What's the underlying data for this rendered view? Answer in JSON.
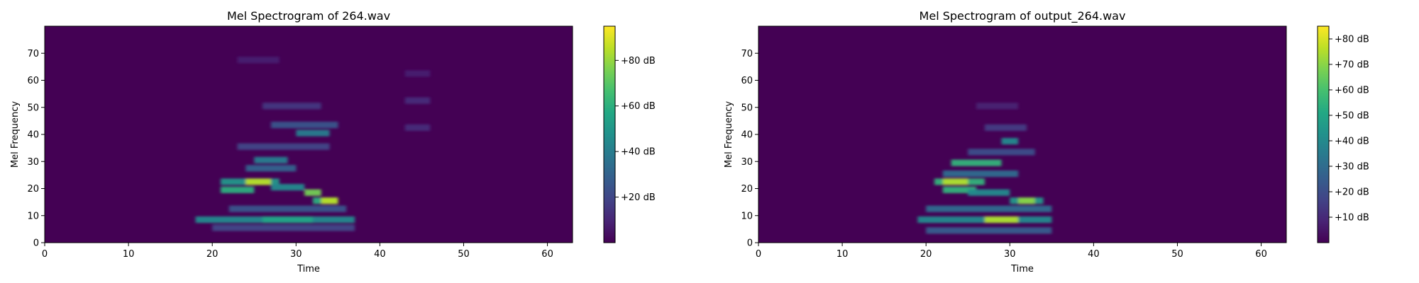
{
  "chart_data": [
    {
      "type": "heatmap",
      "title": "Mel Spectrogram of 264.wav",
      "xlabel": "Time",
      "ylabel": "Mel Frequency",
      "xlim": [
        0,
        63
      ],
      "ylim": [
        0,
        80
      ],
      "xticks": [
        0,
        10,
        20,
        30,
        40,
        50,
        60
      ],
      "yticks": [
        0,
        10,
        20,
        30,
        40,
        50,
        60,
        70
      ],
      "colormap": "viridis",
      "colorbar": {
        "min": 0,
        "max": 95,
        "ticks": [
          20,
          40,
          60,
          80
        ],
        "tick_labels": [
          "+20 dB",
          "+40 dB",
          "+60 dB",
          "+80 dB"
        ]
      },
      "bands": [
        {
          "t0": 18,
          "t1": 37,
          "mel": 8,
          "level": 45
        },
        {
          "t0": 26,
          "t1": 32,
          "mel": 8,
          "level": 55
        },
        {
          "t0": 21,
          "t1": 28,
          "mel": 22,
          "level": 50
        },
        {
          "t0": 24,
          "t1": 27,
          "mel": 22,
          "level": 85
        },
        {
          "t0": 21,
          "t1": 25,
          "mel": 19,
          "level": 60
        },
        {
          "t0": 31,
          "t1": 33,
          "mel": 18,
          "level": 75
        },
        {
          "t0": 32,
          "t1": 35,
          "mel": 15,
          "level": 60
        },
        {
          "t0": 33,
          "t1": 35,
          "mel": 15,
          "level": 85
        },
        {
          "t0": 27,
          "t1": 31,
          "mel": 20,
          "level": 45
        },
        {
          "t0": 30,
          "t1": 34,
          "mel": 40,
          "level": 40
        },
        {
          "t0": 25,
          "t1": 29,
          "mel": 30,
          "level": 40
        },
        {
          "t0": 24,
          "t1": 30,
          "mel": 27,
          "level": 30
        },
        {
          "t0": 22,
          "t1": 36,
          "mel": 12,
          "level": 25
        },
        {
          "t0": 20,
          "t1": 37,
          "mel": 5,
          "level": 20
        },
        {
          "t0": 27,
          "t1": 35,
          "mel": 43,
          "level": 25
        },
        {
          "t0": 23,
          "t1": 34,
          "mel": 35,
          "level": 20
        },
        {
          "t0": 26,
          "t1": 33,
          "mel": 50,
          "level": 15
        },
        {
          "t0": 43,
          "t1": 46,
          "mel": 52,
          "level": 12
        },
        {
          "t0": 43,
          "t1": 46,
          "mel": 42,
          "level": 12
        },
        {
          "t0": 43,
          "t1": 46,
          "mel": 62,
          "level": 8
        },
        {
          "t0": 23,
          "t1": 28,
          "mel": 67,
          "level": 8
        }
      ]
    },
    {
      "type": "heatmap",
      "title": "Mel Spectrogram of output_264.wav",
      "xlabel": "Time",
      "ylabel": "Mel Frequency",
      "xlim": [
        0,
        63
      ],
      "ylim": [
        0,
        80
      ],
      "xticks": [
        0,
        10,
        20,
        30,
        40,
        50,
        60
      ],
      "yticks": [
        0,
        10,
        20,
        30,
        40,
        50,
        60,
        70
      ],
      "colormap": "viridis",
      "colorbar": {
        "min": 0,
        "max": 85,
        "ticks": [
          10,
          20,
          30,
          40,
          50,
          60,
          70,
          80
        ],
        "tick_labels": [
          "+10 dB",
          "+20 dB",
          "+30 dB",
          "+40 dB",
          "+50 dB",
          "+60 dB",
          "+70 dB",
          "+80 dB"
        ]
      },
      "bands": [
        {
          "t0": 19,
          "t1": 35,
          "mel": 8,
          "level": 40
        },
        {
          "t0": 27,
          "t1": 31,
          "mel": 8,
          "level": 75
        },
        {
          "t0": 21,
          "t1": 27,
          "mel": 22,
          "level": 55
        },
        {
          "t0": 22,
          "t1": 25,
          "mel": 22,
          "level": 75
        },
        {
          "t0": 22,
          "t1": 26,
          "mel": 19,
          "level": 55
        },
        {
          "t0": 25,
          "t1": 30,
          "mel": 18,
          "level": 40
        },
        {
          "t0": 30,
          "t1": 34,
          "mel": 15,
          "level": 45
        },
        {
          "t0": 31,
          "t1": 33,
          "mel": 15,
          "level": 70
        },
        {
          "t0": 23,
          "t1": 29,
          "mel": 29,
          "level": 55
        },
        {
          "t0": 29,
          "t1": 31,
          "mel": 37,
          "level": 40
        },
        {
          "t0": 20,
          "t1": 35,
          "mel": 12,
          "level": 30
        },
        {
          "t0": 20,
          "t1": 35,
          "mel": 4,
          "level": 25
        },
        {
          "t0": 22,
          "t1": 31,
          "mel": 25,
          "level": 30
        },
        {
          "t0": 25,
          "t1": 33,
          "mel": 33,
          "level": 20
        },
        {
          "t0": 27,
          "t1": 32,
          "mel": 42,
          "level": 15
        },
        {
          "t0": 26,
          "t1": 31,
          "mel": 50,
          "level": 8
        }
      ]
    }
  ]
}
